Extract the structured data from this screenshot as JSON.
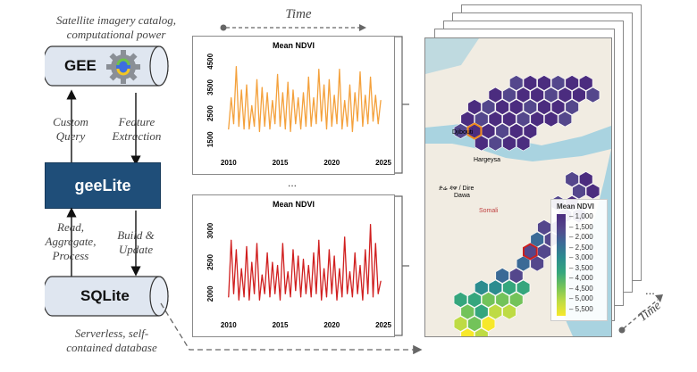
{
  "gee": {
    "caption_line1": "Satellite imagery catalog,",
    "caption_line2": "computational power",
    "label": "GEE"
  },
  "left_arrows": {
    "custom_query_1": "Custom",
    "custom_query_2": "Query",
    "feature_extraction_1": "Feature",
    "feature_extraction_2": "Extraction",
    "read_1": "Read,",
    "read_2": "Aggregate,",
    "read_3": "Process",
    "build_1": "Build &",
    "build_2": "Update"
  },
  "geelite": {
    "label": "geeLite"
  },
  "sqlite": {
    "label": "SQLite",
    "caption_line1": "Serverless, self-",
    "caption_line2": "contained database"
  },
  "time_top": "Time",
  "time_right": "Time",
  "ellipsis_mid": "...",
  "ellipsis_right": "...",
  "map": {
    "place_djibouti": "Djibouti",
    "place_hargeysa": "Hargeysa",
    "place_diredawa_1": "ድሬ ዳዋ / Dire",
    "place_diredawa_2": "Dawa",
    "place_somali": "Somali",
    "legend_title": "Mean NDVI",
    "legend_ticks": [
      "1,000",
      "1,500",
      "2,000",
      "2,500",
      "3,000",
      "3,500",
      "4,000",
      "4,500",
      "5,000",
      "5,500"
    ]
  },
  "chart_data": [
    {
      "type": "line",
      "title": "Mean NDVI",
      "xlabel": "",
      "ylabel": "",
      "x_ticks": [
        2010,
        2015,
        2020,
        2025
      ],
      "y_ticks": [
        1500,
        2500,
        3500,
        4500
      ],
      "xlim": [
        2009.5,
        2025
      ],
      "ylim": [
        1200,
        4700
      ],
      "color": "#f4a13c",
      "series": [
        {
          "name": "Mean NDVI",
          "x": [
            2010.0,
            2010.25,
            2010.5,
            2010.75,
            2011.0,
            2011.25,
            2011.5,
            2011.75,
            2012.0,
            2012.25,
            2012.5,
            2012.75,
            2013.0,
            2013.25,
            2013.5,
            2013.75,
            2014.0,
            2014.25,
            2014.5,
            2014.75,
            2015.0,
            2015.25,
            2015.5,
            2015.75,
            2016.0,
            2016.25,
            2016.5,
            2016.75,
            2017.0,
            2017.25,
            2017.5,
            2017.75,
            2018.0,
            2018.25,
            2018.5,
            2018.75,
            2019.0,
            2019.25,
            2019.5,
            2019.75,
            2020.0,
            2020.25,
            2020.5,
            2020.75,
            2021.0,
            2021.25,
            2021.5,
            2021.75,
            2022.0,
            2022.25,
            2022.5,
            2022.75,
            2023.0,
            2023.25,
            2023.5,
            2023.75,
            2024.0,
            2024.25,
            2024.5,
            2024.75
          ],
          "y": [
            1900,
            3100,
            2100,
            4300,
            2000,
            3400,
            1900,
            3600,
            1900,
            2800,
            2000,
            3800,
            1800,
            3500,
            2000,
            3300,
            1900,
            3000,
            2100,
            4000,
            2000,
            3300,
            1900,
            3700,
            1800,
            3400,
            2100,
            3100,
            1900,
            3300,
            2000,
            3900,
            2000,
            3100,
            2100,
            4200,
            2200,
            3600,
            1900,
            3800,
            2000,
            3200,
            2100,
            4200,
            1900,
            3000,
            2000,
            3600,
            1800,
            3300,
            2200,
            4100,
            2000,
            3200,
            2100,
            3900,
            2200,
            3200,
            2100,
            3000
          ]
        }
      ]
    },
    {
      "type": "line",
      "title": "Mean NDVI",
      "xlabel": "",
      "ylabel": "",
      "x_ticks": [
        2010,
        2015,
        2020,
        2025
      ],
      "y_ticks": [
        2000,
        2500,
        3000
      ],
      "xlim": [
        2009.5,
        2025
      ],
      "ylim": [
        1750,
        3250
      ],
      "color": "#d01f1f",
      "series": [
        {
          "name": "Mean NDVI",
          "x": [
            2010.0,
            2010.25,
            2010.5,
            2010.75,
            2011.0,
            2011.25,
            2011.5,
            2011.75,
            2012.0,
            2012.25,
            2012.5,
            2012.75,
            2013.0,
            2013.25,
            2013.5,
            2013.75,
            2014.0,
            2014.25,
            2014.5,
            2014.75,
            2015.0,
            2015.25,
            2015.5,
            2015.75,
            2016.0,
            2016.25,
            2016.5,
            2016.75,
            2017.0,
            2017.25,
            2017.5,
            2017.75,
            2018.0,
            2018.25,
            2018.5,
            2018.75,
            2019.0,
            2019.25,
            2019.5,
            2019.75,
            2020.0,
            2020.25,
            2020.5,
            2020.75,
            2021.0,
            2021.25,
            2021.5,
            2021.75,
            2022.0,
            2022.25,
            2022.5,
            2022.75,
            2023.0,
            2023.25,
            2023.5,
            2023.75,
            2024.0,
            2024.25,
            2024.5,
            2024.75
          ],
          "y": [
            1950,
            2850,
            2000,
            2700,
            1900,
            2400,
            1950,
            2750,
            1900,
            2500,
            2000,
            2800,
            1900,
            2300,
            2000,
            2650,
            1950,
            2500,
            2000,
            2450,
            1900,
            2800,
            2000,
            2350,
            1950,
            2700,
            2050,
            2600,
            1950,
            2550,
            2000,
            2450,
            1950,
            2650,
            2000,
            2850,
            1900,
            2400,
            1950,
            2700,
            2000,
            2600,
            1900,
            2400,
            1950,
            2900,
            2000,
            2350,
            1950,
            2650,
            2000,
            2450,
            1900,
            2700,
            2000,
            3100,
            1950,
            2800,
            2000,
            2200
          ]
        }
      ]
    }
  ]
}
